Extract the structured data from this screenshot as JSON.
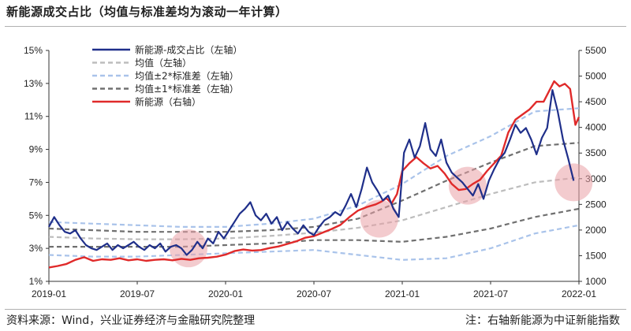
{
  "title": "新能源成交占比（均值与标准差均为滚动一年计算）",
  "source": "资料来源：Wind，兴业证券经济与金融研究院整理",
  "note": "注：右轴新能源为中证新能指数",
  "chart_data": {
    "type": "line",
    "x_ticks": [
      "2019-01",
      "2019-07",
      "2020-01",
      "2020-07",
      "2021-01",
      "2021-07",
      "2022-01"
    ],
    "y_left_ticks": [
      "15%",
      "13%",
      "11%",
      "9%",
      "7%",
      "5%",
      "3%",
      "1%"
    ],
    "y_left_range": [
      1,
      15
    ],
    "y_right_ticks": [
      "5500",
      "5000",
      "4500",
      "4000",
      "3500",
      "3000",
      "2500",
      "2000",
      "1500",
      "1000"
    ],
    "y_right_range": [
      1000,
      5500
    ],
    "x_range": [
      "2019-01",
      "2022-01"
    ],
    "colors": {
      "share": "#1f2f8a",
      "mean": "#bdbdbd",
      "band2": "#a9c3ea",
      "band1": "#707070",
      "index": "#e02a2a",
      "highlight": "#e9a0a6"
    },
    "highlights": [
      {
        "x": 2019.79,
        "y": 3.0
      },
      {
        "x": 2020.87,
        "y": 4.8
      },
      {
        "x": 2021.37,
        "y": 6.8
      },
      {
        "x": 2021.97,
        "y": 7.0
      }
    ],
    "series": [
      {
        "name": "新能源-成交占比（左轴）",
        "axis": "left",
        "x": [
          2019.0,
          2019.03,
          2019.06,
          2019.09,
          2019.12,
          2019.15,
          2019.18,
          2019.21,
          2019.24,
          2019.27,
          2019.3,
          2019.33,
          2019.36,
          2019.39,
          2019.42,
          2019.45,
          2019.48,
          2019.51,
          2019.54,
          2019.57,
          2019.6,
          2019.63,
          2019.66,
          2019.69,
          2019.72,
          2019.75,
          2019.78,
          2019.81,
          2019.84,
          2019.87,
          2019.9,
          2019.93,
          2019.96,
          2019.99,
          2020.02,
          2020.05,
          2020.08,
          2020.11,
          2020.14,
          2020.17,
          2020.2,
          2020.23,
          2020.26,
          2020.29,
          2020.32,
          2020.35,
          2020.38,
          2020.41,
          2020.44,
          2020.47,
          2020.5,
          2020.53,
          2020.56,
          2020.59,
          2020.62,
          2020.65,
          2020.68,
          2020.71,
          2020.74,
          2020.77,
          2020.8,
          2020.83,
          2020.86,
          2020.89,
          2020.92,
          2020.95,
          2020.98,
          2021.01,
          2021.04,
          2021.07,
          2021.1,
          2021.13,
          2021.16,
          2021.19,
          2021.22,
          2021.25,
          2021.28,
          2021.31,
          2021.34,
          2021.37,
          2021.4,
          2021.43,
          2021.46,
          2021.49,
          2021.52,
          2021.55,
          2021.58,
          2021.61,
          2021.64,
          2021.67,
          2021.7,
          2021.73,
          2021.76,
          2021.79,
          2021.82,
          2021.85,
          2021.88,
          2021.91,
          2021.94,
          2021.97
        ],
        "values": [
          4.3,
          4.9,
          4.4,
          4.0,
          3.9,
          4.1,
          3.6,
          3.2,
          3.0,
          2.9,
          3.1,
          3.3,
          2.9,
          3.2,
          3.0,
          3.2,
          3.4,
          3.1,
          2.9,
          3.2,
          3.0,
          3.3,
          2.8,
          3.1,
          3.2,
          3.0,
          2.6,
          2.9,
          3.4,
          3.0,
          3.6,
          3.3,
          4.0,
          3.6,
          4.1,
          4.6,
          5.1,
          5.4,
          5.8,
          5.0,
          4.7,
          5.1,
          4.5,
          4.9,
          4.1,
          4.6,
          4.2,
          3.9,
          4.4,
          4.0,
          3.8,
          4.3,
          4.7,
          4.9,
          5.2,
          5.0,
          5.6,
          6.3,
          5.5,
          6.6,
          7.9,
          7.0,
          6.5,
          5.9,
          6.2,
          5.4,
          4.9,
          8.8,
          9.6,
          8.5,
          9.2,
          10.6,
          9.0,
          8.6,
          9.6,
          8.2,
          7.6,
          7.3,
          7.0,
          6.6,
          6.2,
          6.9,
          6.0,
          7.1,
          7.8,
          8.4,
          8.8,
          9.6,
          10.5,
          10.0,
          10.3,
          9.6,
          8.7,
          9.7,
          10.3,
          12.6,
          11.3,
          9.6,
          8.4,
          7.1
        ]
      },
      {
        "name": "均值（左轴）",
        "axis": "left",
        "x": [
          2019.0,
          2019.25,
          2019.5,
          2019.75,
          2020.0,
          2020.25,
          2020.5,
          2020.75,
          2021.0,
          2021.25,
          2021.5,
          2021.75,
          2022.0
        ],
        "values": [
          3.7,
          3.6,
          3.55,
          3.55,
          3.6,
          3.75,
          3.95,
          4.25,
          4.7,
          5.5,
          6.3,
          7.0,
          7.3
        ]
      },
      {
        "name": "均值±2*标准差（左轴）",
        "axis": "left",
        "x": [
          2019.0,
          2019.25,
          2019.5,
          2019.75,
          2020.0,
          2020.25,
          2020.5,
          2020.75,
          2021.0,
          2021.25,
          2021.5,
          2021.75,
          2022.0
        ],
        "values": [
          4.6,
          4.5,
          4.4,
          4.3,
          4.3,
          4.5,
          4.8,
          5.6,
          6.9,
          8.6,
          9.8,
          11.3,
          11.5
        ],
        "values_lower": [
          2.6,
          2.5,
          2.5,
          2.6,
          2.7,
          2.8,
          2.9,
          2.6,
          2.3,
          2.4,
          3.0,
          3.9,
          4.4
        ]
      },
      {
        "name": "均值±1*标准差（左轴）",
        "axis": "left",
        "x": [
          2019.0,
          2019.25,
          2019.5,
          2019.75,
          2020.0,
          2020.25,
          2020.5,
          2020.75,
          2021.0,
          2021.25,
          2021.5,
          2021.75,
          2022.0
        ],
        "values": [
          4.2,
          4.1,
          4.0,
          4.0,
          4.0,
          4.1,
          4.3,
          4.8,
          5.9,
          7.1,
          8.2,
          9.2,
          9.4
        ],
        "values_lower": [
          3.1,
          3.1,
          3.1,
          3.1,
          3.2,
          3.3,
          3.5,
          3.5,
          3.4,
          3.7,
          4.2,
          4.9,
          5.4
        ]
      },
      {
        "name": "新能源（右轴）",
        "axis": "right",
        "x": [
          2019.0,
          2019.05,
          2019.1,
          2019.15,
          2019.2,
          2019.25,
          2019.3,
          2019.35,
          2019.4,
          2019.45,
          2019.5,
          2019.55,
          2019.6,
          2019.65,
          2019.7,
          2019.75,
          2019.8,
          2019.85,
          2019.9,
          2019.95,
          2020.0,
          2020.05,
          2020.1,
          2020.15,
          2020.2,
          2020.25,
          2020.3,
          2020.35,
          2020.4,
          2020.45,
          2020.5,
          2020.55,
          2020.6,
          2020.65,
          2020.7,
          2020.75,
          2020.8,
          2020.85,
          2020.88,
          2020.91,
          2020.94,
          2020.97,
          2021.0,
          2021.04,
          2021.08,
          2021.12,
          2021.16,
          2021.2,
          2021.24,
          2021.28,
          2021.32,
          2021.36,
          2021.4,
          2021.44,
          2021.48,
          2021.52,
          2021.56,
          2021.6,
          2021.64,
          2021.68,
          2021.72,
          2021.76,
          2021.8,
          2021.83,
          2021.86,
          2021.89,
          2021.92,
          2021.95,
          2021.98,
          2022.0
        ],
        "values": [
          1270,
          1300,
          1340,
          1420,
          1470,
          1400,
          1430,
          1420,
          1450,
          1410,
          1430,
          1400,
          1420,
          1430,
          1410,
          1440,
          1420,
          1450,
          1460,
          1480,
          1520,
          1590,
          1620,
          1600,
          1610,
          1650,
          1680,
          1730,
          1780,
          1850,
          1880,
          1950,
          2020,
          2100,
          2250,
          2380,
          2450,
          2500,
          2550,
          2620,
          2520,
          2700,
          3150,
          3300,
          3420,
          3300,
          3200,
          3250,
          3100,
          2900,
          2780,
          2800,
          2900,
          2980,
          3150,
          3300,
          3450,
          3900,
          4150,
          4250,
          4350,
          4500,
          4500,
          4700,
          4900,
          4800,
          4850,
          4750,
          4050,
          4200
        ]
      }
    ],
    "legend": [
      {
        "label": "新能源-成交占比（左轴）",
        "color": "#1f2f8a",
        "dash": "solid"
      },
      {
        "label": "均值（左轴）",
        "color": "#bdbdbd",
        "dash": "dashed"
      },
      {
        "label": "均值±2*标准差（左轴）",
        "color": "#a9c3ea",
        "dash": "dashed"
      },
      {
        "label": "均值±1*标准差（左轴）",
        "color": "#707070",
        "dash": "dashed"
      },
      {
        "label": "新能源（右轴）",
        "color": "#e02a2a",
        "dash": "solid"
      }
    ]
  }
}
